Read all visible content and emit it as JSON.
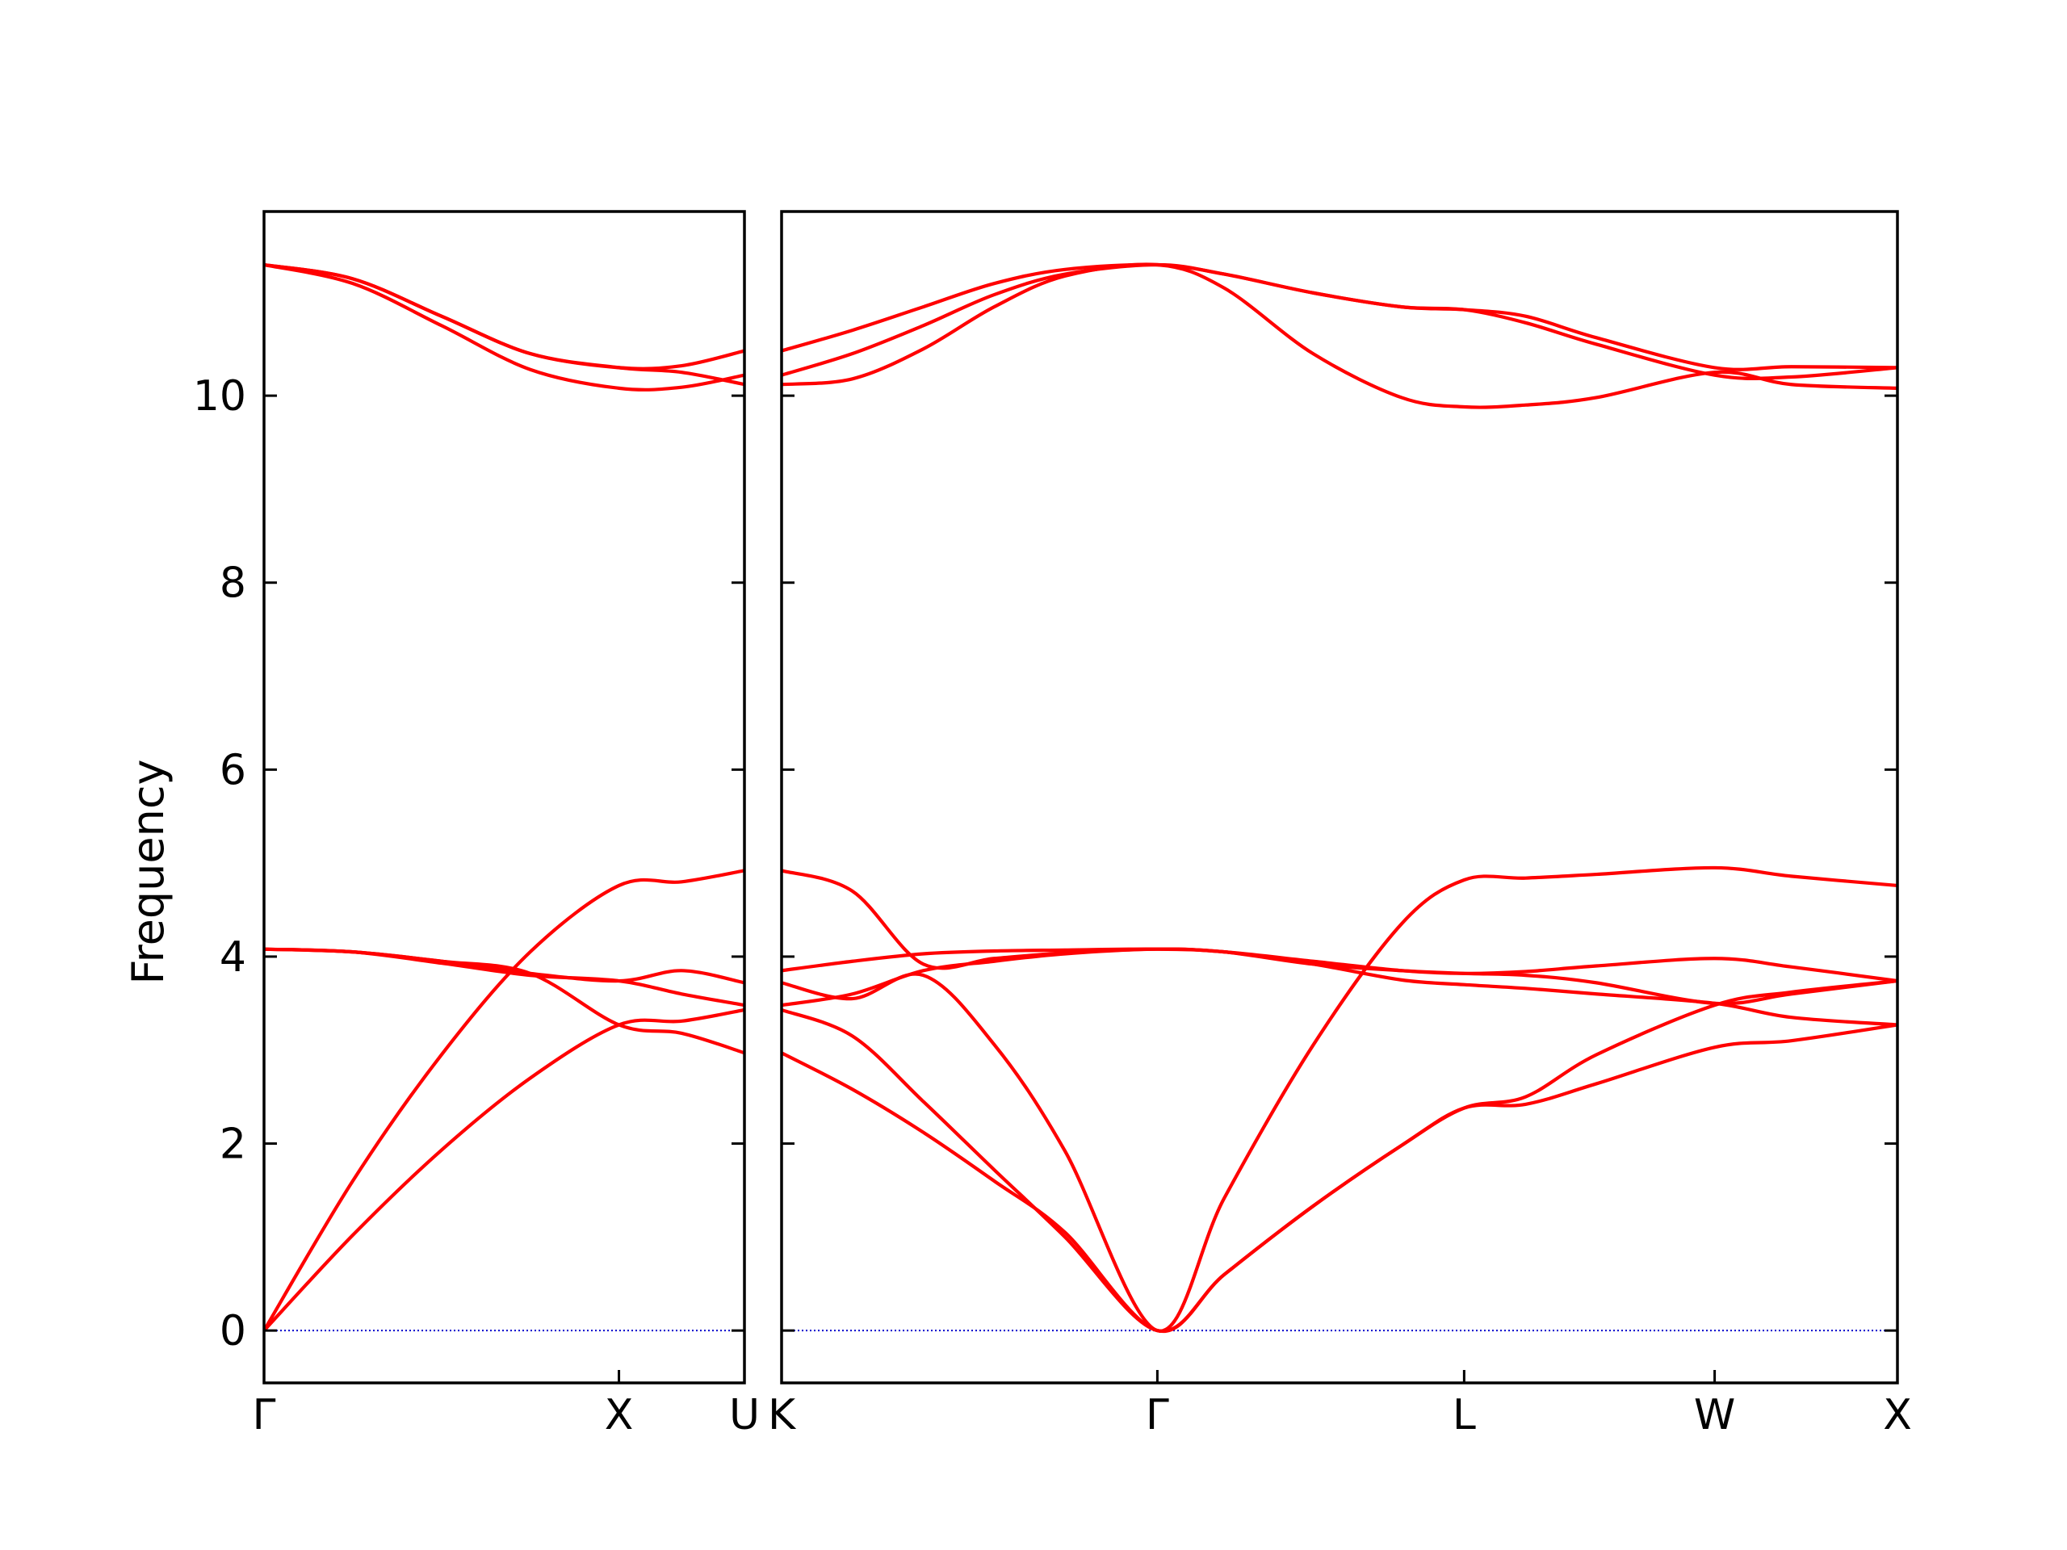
{
  "chart_data": {
    "type": "line",
    "title": "",
    "ylabel": "Frequency",
    "ylim": [
      -0.56,
      11.97
    ],
    "yticks": [
      0,
      2,
      4,
      6,
      8,
      10
    ],
    "ytick_labels": [
      "0",
      "2",
      "4",
      "6",
      "8",
      "10"
    ],
    "grid": false,
    "legend": "none",
    "colors": {
      "bands": "#ff0000",
      "zero_line": "#0000cc",
      "axes": "#000000"
    },
    "panels": [
      {
        "id": "left",
        "xlim": [
          0,
          1.3536
        ],
        "x_ticks": [
          0,
          1.0,
          1.3536
        ],
        "x_tick_labels": [
          "Γ",
          "X",
          "U"
        ],
        "bands": [
          {
            "x": [
              0,
              0.25,
              0.5,
              0.75,
              1.0,
              1.1768,
              1.3536
            ],
            "y": [
              0,
              1.02,
              1.93,
              2.7,
              3.27,
              3.31,
              3.43
            ]
          },
          {
            "x": [
              0,
              0.25,
              0.5,
              0.75,
              1.0,
              1.1768,
              1.3536
            ],
            "y": [
              0,
              1.6,
              2.95,
              4.05,
              4.76,
              4.8,
              4.92
            ]
          },
          {
            "x": [
              0,
              0.25,
              0.5,
              0.75,
              1.0,
              1.1768,
              1.3536
            ],
            "y": [
              4.08,
              4.05,
              3.95,
              3.82,
              3.74,
              3.85,
              3.72
            ]
          },
          {
            "x": [
              0,
              0.25,
              0.5,
              0.75,
              1.0,
              1.1768,
              1.3536
            ],
            "y": [
              4.08,
              4.05,
              3.95,
              3.82,
              3.27,
              3.18,
              2.97
            ]
          },
          {
            "x": [
              0,
              0.25,
              0.5,
              0.75,
              1.0,
              1.1768,
              1.3536
            ],
            "y": [
              4.08,
              4.05,
              3.93,
              3.8,
              3.74,
              3.6,
              3.48
            ]
          },
          {
            "x": [
              0,
              0.25,
              0.5,
              0.75,
              1.0,
              1.1768,
              1.3536
            ],
            "y": [
              11.4,
              11.25,
              10.85,
              10.45,
              10.3,
              10.32,
              10.48
            ]
          },
          {
            "x": [
              0,
              0.25,
              0.5,
              0.75,
              1.0,
              1.1768,
              1.3536
            ],
            "y": [
              11.4,
              11.2,
              10.75,
              10.28,
              10.08,
              10.09,
              10.22
            ]
          },
          {
            "x": [
              0,
              0.25,
              0.5,
              0.75,
              1.0,
              1.1768,
              1.3536
            ],
            "y": [
              11.4,
              11.25,
              10.85,
              10.45,
              10.3,
              10.25,
              10.12
            ]
          }
        ]
      },
      {
        "id": "right",
        "xlim": [
          0,
          3.1498
        ],
        "x_ticks": [
          0,
          1.0607,
          1.9267,
          2.6338,
          3.1498
        ],
        "x_tick_labels": [
          "K",
          "Γ",
          "L",
          "W",
          "X"
        ],
        "bands": [
          {
            "x": [
              0,
              0.2,
              0.4,
              0.6,
              0.8,
              1.0607,
              1.25,
              1.5,
              1.75,
              1.9267,
              2.1,
              2.3,
              2.6338,
              2.85,
              3.1498
            ],
            "y": [
              2.97,
              2.58,
              2.12,
              1.6,
              1.05,
              0,
              0.6,
              1.33,
              1.98,
              2.38,
              2.42,
              2.64,
              3.03,
              3.1,
              3.27
            ]
          },
          {
            "x": [
              0,
              0.2,
              0.4,
              0.6,
              0.8,
              1.0607,
              1.25,
              1.5,
              1.75,
              1.9267,
              2.1,
              2.3,
              2.6338,
              2.85,
              3.1498
            ],
            "y": [
              3.43,
              3.15,
              2.45,
              1.72,
              1.0,
              0,
              0.6,
              1.33,
              1.98,
              2.38,
              2.5,
              2.95,
              3.48,
              3.62,
              3.74
            ]
          },
          {
            "x": [
              0,
              0.2,
              0.4,
              0.6,
              0.8,
              1.0607,
              1.25,
              1.5,
              1.75,
              1.9267,
              2.1,
              2.3,
              2.6338,
              2.85,
              3.1498
            ],
            "y": [
              3.72,
              3.55,
              3.8,
              3.06,
              1.92,
              0,
              1.42,
              3.05,
              4.35,
              4.82,
              4.84,
              4.88,
              4.95,
              4.86,
              4.76
            ]
          },
          {
            "x": [
              0,
              0.2,
              0.4,
              0.6,
              0.8,
              1.0607,
              1.25,
              1.5,
              1.75,
              1.9267,
              2.1,
              2.3,
              2.6338,
              2.85,
              3.1498
            ],
            "y": [
              3.48,
              3.6,
              3.85,
              3.95,
              4.03,
              4.08,
              4.05,
              3.95,
              3.85,
              3.82,
              3.84,
              3.9,
              3.98,
              3.89,
              3.74
            ]
          },
          {
            "x": [
              0,
              0.2,
              0.4,
              0.6,
              0.8,
              1.0607,
              1.25,
              1.5,
              1.75,
              1.9267,
              2.1,
              2.3,
              2.6338,
              2.85,
              3.1498
            ],
            "y": [
              3.85,
              3.95,
              4.03,
              4.06,
              4.07,
              4.08,
              4.05,
              3.92,
              3.75,
              3.7,
              3.66,
              3.6,
              3.5,
              3.35,
              3.27
            ]
          },
          {
            "x": [
              0,
              0.2,
              0.4,
              0.6,
              0.8,
              1.0607,
              1.25,
              1.5,
              1.75,
              1.9267,
              2.1,
              2.3,
              2.6338,
              2.85,
              3.1498
            ],
            "y": [
              4.92,
              4.7,
              3.92,
              3.98,
              4.04,
              4.08,
              4.05,
              3.92,
              3.85,
              3.82,
              3.8,
              3.72,
              3.5,
              3.6,
              3.74
            ]
          },
          {
            "x": [
              0,
              0.2,
              0.4,
              0.6,
              0.8,
              1.0607,
              1.25,
              1.5,
              1.75,
              1.9267,
              2.1,
              2.3,
              2.6338,
              2.85,
              3.1498
            ],
            "y": [
              10.12,
              10.18,
              10.5,
              10.95,
              11.28,
              11.4,
              11.15,
              10.45,
              9.98,
              9.88,
              9.9,
              9.98,
              10.25,
              10.12,
              10.08
            ]
          },
          {
            "x": [
              0,
              0.2,
              0.4,
              0.6,
              0.8,
              1.0607,
              1.25,
              1.5,
              1.75,
              1.9267,
              2.1,
              2.3,
              2.6338,
              2.85,
              3.1498
            ],
            "y": [
              10.22,
              10.45,
              10.75,
              11.08,
              11.3,
              11.4,
              11.3,
              11.1,
              10.95,
              10.92,
              10.78,
              10.55,
              10.22,
              10.2,
              10.3
            ]
          },
          {
            "x": [
              0,
              0.2,
              0.4,
              0.6,
              0.8,
              1.0607,
              1.25,
              1.5,
              1.75,
              1.9267,
              2.1,
              2.3,
              2.6338,
              2.85,
              3.1498
            ],
            "y": [
              10.48,
              10.7,
              10.95,
              11.2,
              11.35,
              11.4,
              11.3,
              11.1,
              10.95,
              10.92,
              10.85,
              10.62,
              10.3,
              10.31,
              10.3
            ]
          }
        ]
      }
    ]
  }
}
